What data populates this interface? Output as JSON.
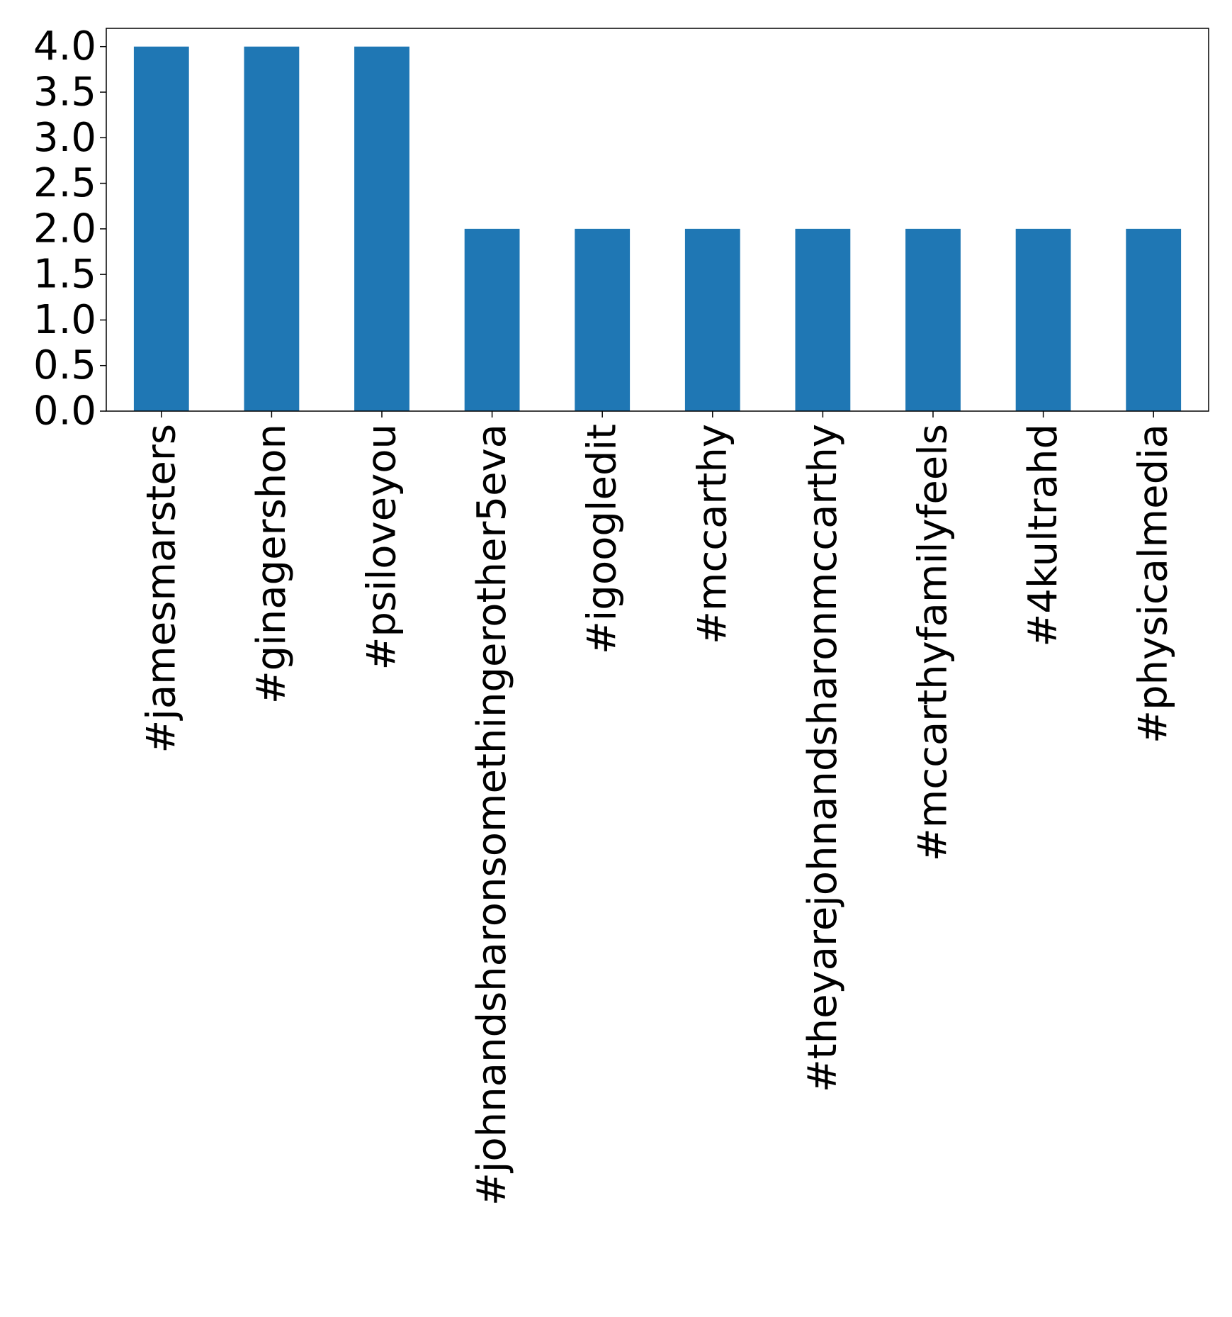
{
  "chart_data": {
    "type": "bar",
    "title": "",
    "xlabel": "",
    "ylabel": "",
    "categories": [
      "#jamesmarsters",
      "#ginagershon",
      "#psiloveyou",
      "#johnandsharonsomethingerother5eva",
      "#igoogledit",
      "#mccarthy",
      "#theyarejohnandsharonmccarthy",
      "#mccarthyfamilyfeels",
      "#4kultrahd",
      "#physicalmedia"
    ],
    "values": [
      4,
      4,
      4,
      2,
      2,
      2,
      2,
      2,
      2,
      2
    ],
    "ylim": [
      0,
      4.2
    ],
    "yticks": [
      "0.0",
      "0.5",
      "1.0",
      "1.5",
      "2.0",
      "2.5",
      "3.0",
      "3.5",
      "4.0"
    ],
    "bar_color": "#1f77b4",
    "grid": false,
    "legend": "none"
  }
}
